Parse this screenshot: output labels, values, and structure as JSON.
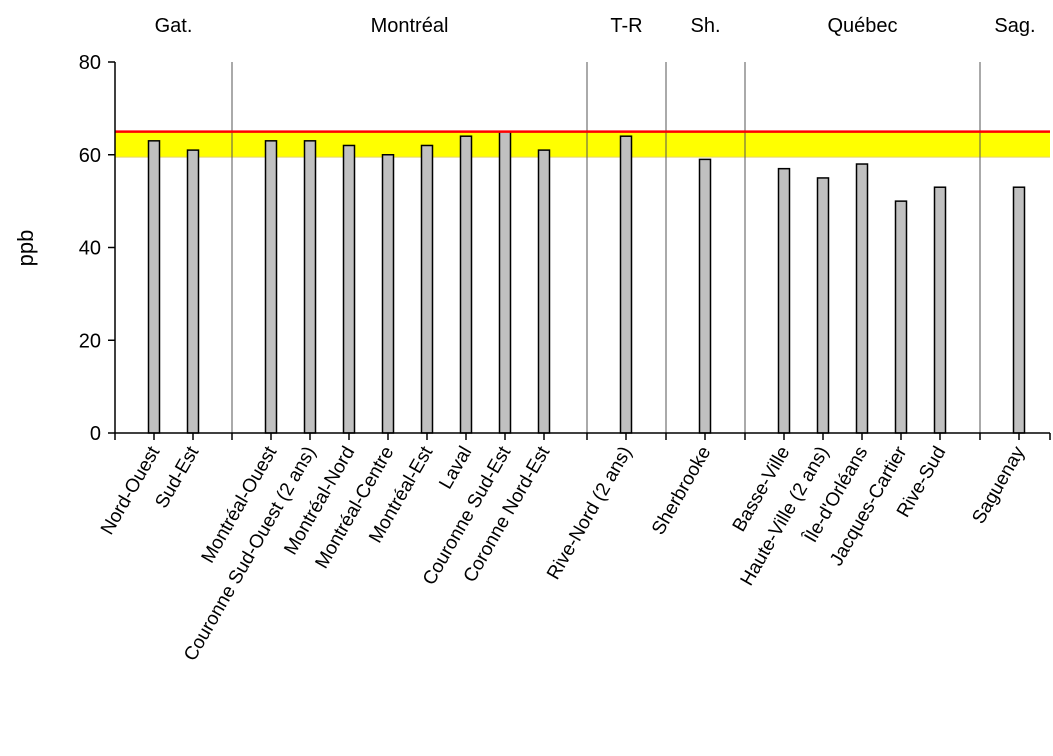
{
  "chart_data": {
    "type": "bar",
    "title": "",
    "xlabel": "",
    "ylabel": "ppb",
    "ylim": [
      0,
      80
    ],
    "yticks": [
      0,
      20,
      40,
      60,
      80
    ],
    "grid": false,
    "legend": "none",
    "groups": [
      {
        "name": "Gat.",
        "categories": [
          "Nord-Ouest",
          "Sud-Est"
        ],
        "values": [
          63,
          61
        ]
      },
      {
        "name": "Montréal",
        "categories": [
          "Montréal-Ouest",
          "Couronne Sud-Ouest (2 ans)",
          "Montréal-Nord",
          "Montréal-Centre",
          "Montréal-Est",
          "Laval",
          "Couronne Sud-Est",
          "Coronne Nord-Est"
        ],
        "values": [
          63,
          63,
          62,
          60,
          62,
          64,
          65,
          61
        ]
      },
      {
        "name": "T-R",
        "categories": [
          "Rive-Nord (2 ans)"
        ],
        "values": [
          64
        ]
      },
      {
        "name": "Sh.",
        "categories": [
          "Sherbrooke"
        ],
        "values": [
          59
        ]
      },
      {
        "name": "Québec",
        "categories": [
          "Basse-Ville",
          "Haute-Ville (2 ans)",
          "Île-d'Orléans",
          "Jacques-Cartier",
          "Rive-Sud"
        ],
        "values": [
          57,
          55,
          58,
          50,
          53
        ]
      },
      {
        "name": "Sag.",
        "categories": [
          "Saguenay"
        ],
        "values": [
          53
        ]
      }
    ],
    "reference_line": {
      "value": 65,
      "color": "#ff0000"
    },
    "reference_band": {
      "from": 59.5,
      "to": 65,
      "color": "#ffff00"
    },
    "bar_color": "#c0c0c0"
  }
}
